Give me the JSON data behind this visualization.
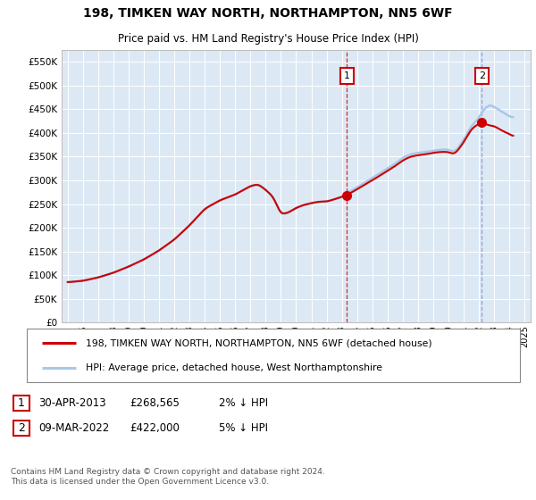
{
  "title": "198, TIMKEN WAY NORTH, NORTHAMPTON, NN5 6WF",
  "subtitle": "Price paid vs. HM Land Registry's House Price Index (HPI)",
  "ylim": [
    0,
    575000
  ],
  "yticks": [
    0,
    50000,
    100000,
    150000,
    200000,
    250000,
    300000,
    350000,
    400000,
    450000,
    500000,
    550000
  ],
  "ytick_labels": [
    "£0",
    "£50K",
    "£100K",
    "£150K",
    "£200K",
    "£250K",
    "£300K",
    "£350K",
    "£400K",
    "£450K",
    "£500K",
    "£550K"
  ],
  "background_color": "#dce9f5",
  "legend_entries": [
    "198, TIMKEN WAY NORTH, NORTHAMPTON, NN5 6WF (detached house)",
    "HPI: Average price, detached house, West Northamptonshire"
  ],
  "line1_color": "#cc0000",
  "line2_color": "#aac8e8",
  "sale1_year": 2013.33,
  "sale1_value": 268565,
  "sale2_year": 2022.19,
  "sale2_value": 422000,
  "annotation1": [
    "1",
    "30-APR-2013",
    "£268,565",
    "2% ↓ HPI"
  ],
  "annotation2": [
    "2",
    "09-MAR-2022",
    "£422,000",
    "5% ↓ HPI"
  ],
  "footer": "Contains HM Land Registry data © Crown copyright and database right 2024.\nThis data is licensed under the Open Government Licence v3.0.",
  "hpi_knots_x": [
    1995,
    1996,
    1997,
    1998,
    1999,
    2000,
    2001,
    2002,
    2003,
    2004,
    2005,
    2006,
    2007,
    2007.5,
    2008,
    2008.5,
    2009,
    2009.5,
    2010,
    2010.5,
    2011,
    2011.5,
    2012,
    2012.5,
    2013,
    2013.33,
    2013.5,
    2014,
    2014.5,
    2015,
    2015.5,
    2016,
    2016.5,
    2017,
    2017.5,
    2018,
    2018.5,
    2019,
    2019.5,
    2020,
    2020.3,
    2020.5,
    2021,
    2021.5,
    2022,
    2022.19,
    2022.5,
    2022.75,
    2023,
    2023.5,
    2024,
    2024.25
  ],
  "hpi_knots_y": [
    85000,
    88000,
    95000,
    105000,
    118000,
    133000,
    152000,
    175000,
    205000,
    240000,
    258000,
    270000,
    288000,
    292000,
    280000,
    265000,
    228000,
    232000,
    242000,
    248000,
    252000,
    255000,
    255000,
    260000,
    265000,
    273000,
    276000,
    285000,
    295000,
    305000,
    315000,
    325000,
    335000,
    348000,
    355000,
    358000,
    360000,
    362000,
    365000,
    365000,
    360000,
    362000,
    385000,
    415000,
    430000,
    445000,
    455000,
    460000,
    455000,
    445000,
    435000,
    432000
  ],
  "red_knots_x": [
    1995,
    1996,
    1997,
    1998,
    1999,
    2000,
    2001,
    2002,
    2003,
    2004,
    2005,
    2006,
    2007,
    2007.5,
    2008,
    2008.5,
    2009,
    2009.5,
    2010,
    2010.5,
    2011,
    2011.5,
    2012,
    2012.5,
    2013,
    2013.33,
    2013.5,
    2014,
    2014.5,
    2015,
    2015.5,
    2016,
    2016.5,
    2017,
    2017.5,
    2018,
    2018.5,
    2019,
    2019.5,
    2020,
    2020.3,
    2020.5,
    2021,
    2021.5,
    2022,
    2022.19,
    2022.5,
    2022.75,
    2023,
    2023.5,
    2024,
    2024.25
  ],
  "red_knots_y": [
    85000,
    88000,
    95000,
    105000,
    118000,
    133000,
    152000,
    175000,
    205000,
    240000,
    258000,
    270000,
    288000,
    292000,
    280000,
    265000,
    228000,
    232000,
    242000,
    248000,
    252000,
    255000,
    255000,
    260000,
    265000,
    268565,
    272000,
    281000,
    291000,
    300000,
    310000,
    320000,
    330000,
    342000,
    350000,
    353000,
    355000,
    358000,
    360000,
    360000,
    355000,
    358000,
    380000,
    408000,
    420000,
    422000,
    418000,
    415000,
    415000,
    405000,
    398000,
    392000
  ]
}
